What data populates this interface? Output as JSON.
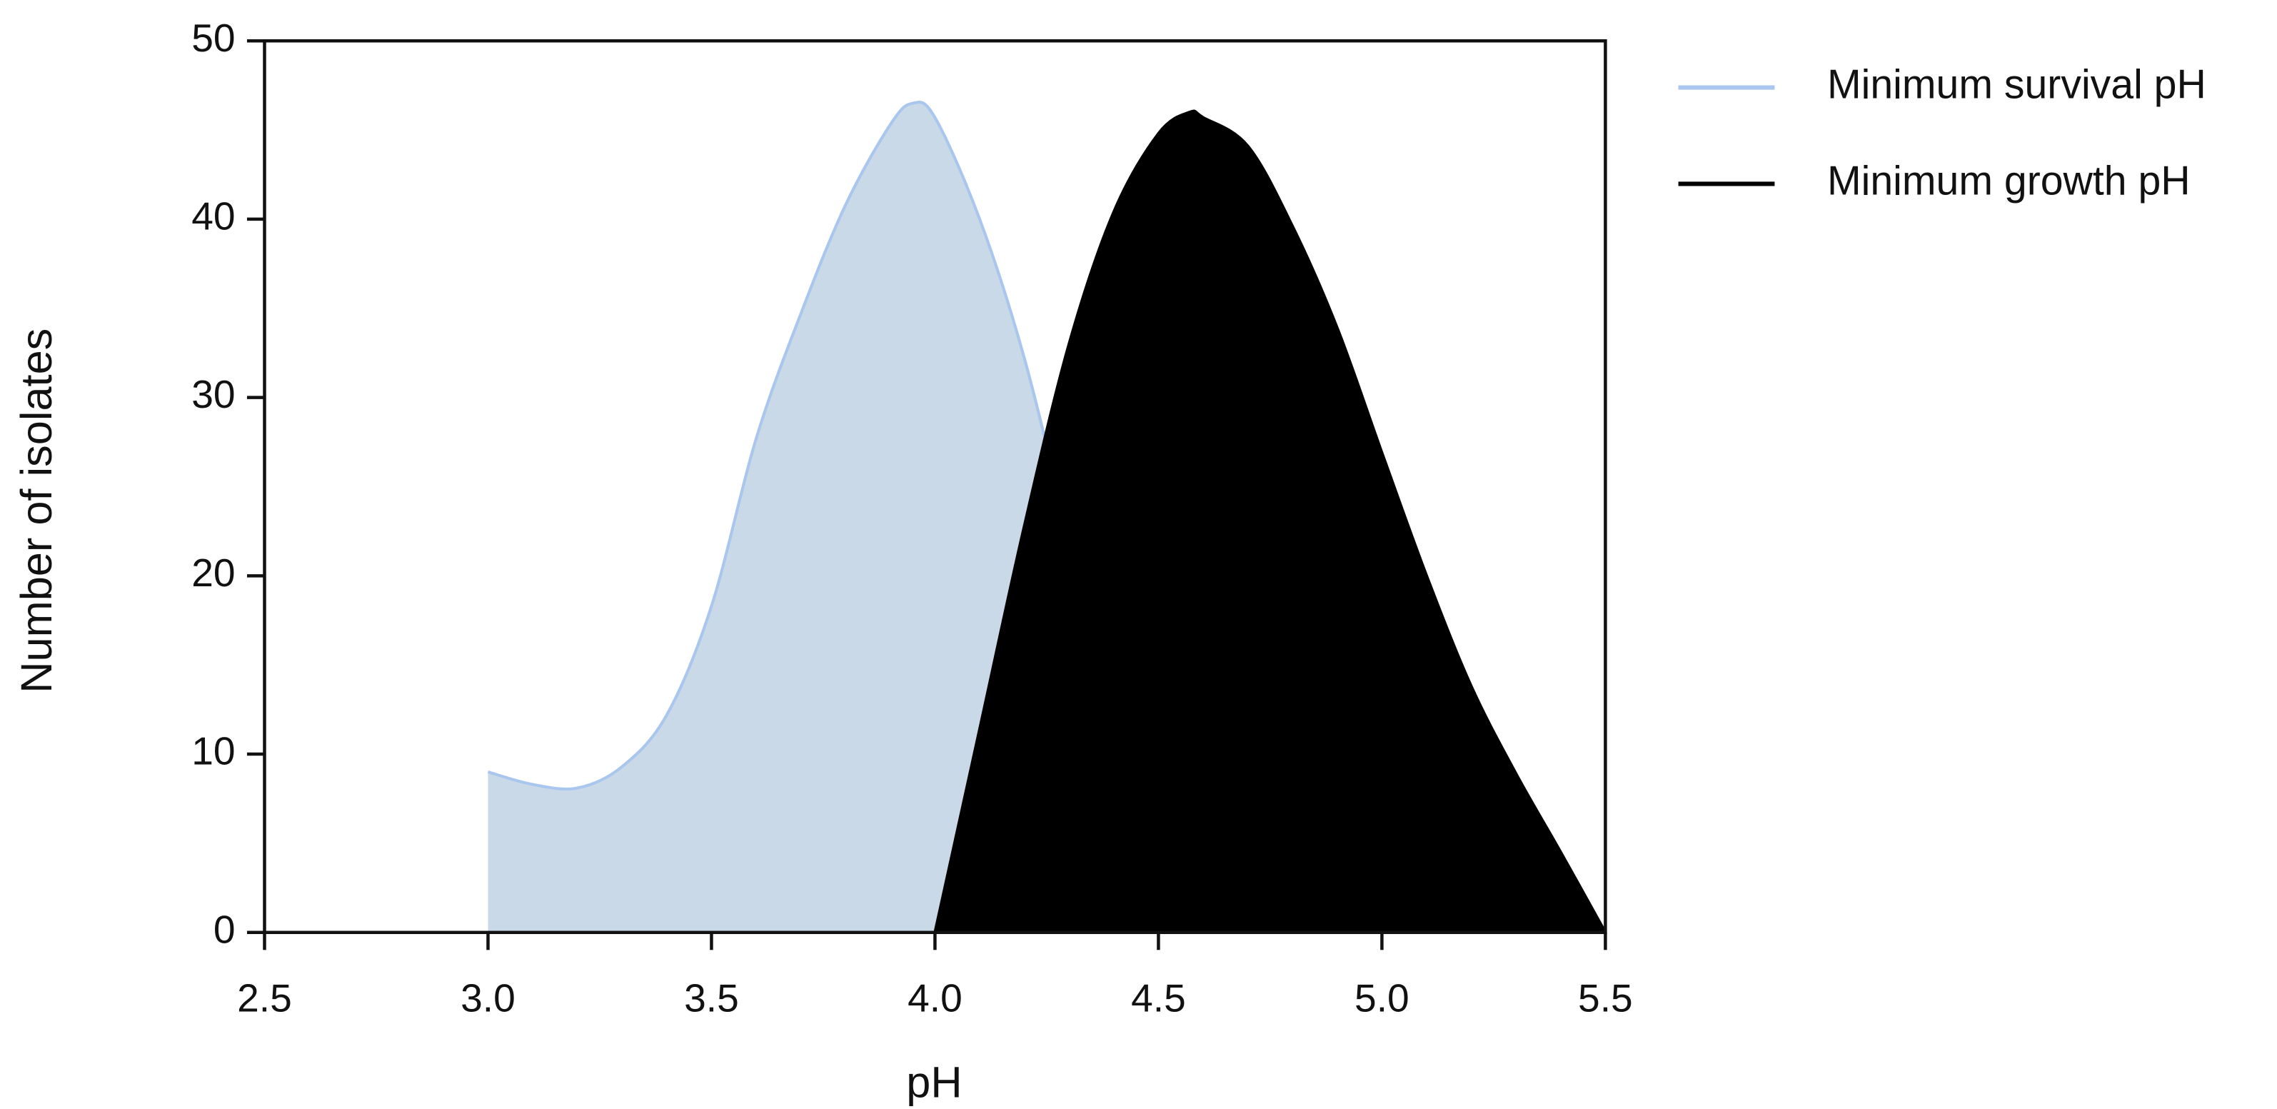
{
  "chart_data": {
    "type": "area",
    "x_label": "pH",
    "y_label": "Number of isolates",
    "xlim": [
      2.5,
      5.5
    ],
    "ylim": [
      0,
      50
    ],
    "xticks": [
      2.5,
      {
        "value": 3,
        "label": "3.0"
      },
      3.5,
      {
        "value": 4,
        "label": "4.0"
      },
      4.5,
      {
        "value": 5,
        "label": "5.0"
      },
      5.5
    ],
    "yticks": [
      0,
      10,
      20,
      30,
      40,
      50
    ],
    "grid": false,
    "legend": "outside-top-right",
    "series": [
      {
        "name": "Minimum survival pH",
        "color": "#c9d9e7",
        "line_color": "#a9c7ee",
        "x": [
          3.0,
          3.1,
          3.2,
          3.3,
          3.4,
          3.5,
          3.6,
          3.7,
          3.8,
          3.9,
          3.95,
          4.0,
          4.1,
          4.2,
          4.3,
          4.4,
          4.5
        ],
        "values": [
          9,
          8.3,
          8.1,
          9.3,
          12.2,
          18.3,
          27.7,
          34.7,
          40.8,
          45.3,
          46.5,
          45.7,
          40,
          32.2,
          22,
          11.4,
          0
        ]
      },
      {
        "name": "Minimum growth pH",
        "color": "#000000",
        "line_color": "#000000",
        "x": [
          4.0,
          4.1,
          4.2,
          4.3,
          4.4,
          4.5,
          4.57,
          4.6,
          4.7,
          4.8,
          4.9,
          5.0,
          5.1,
          5.2,
          5.3,
          5.4,
          5.5
        ],
        "values": [
          0,
          11.4,
          22.8,
          33,
          40.4,
          44.8,
          46,
          45.7,
          44.1,
          39.6,
          33.9,
          26.9,
          20,
          13.8,
          8.9,
          4.5,
          0
        ]
      }
    ]
  }
}
